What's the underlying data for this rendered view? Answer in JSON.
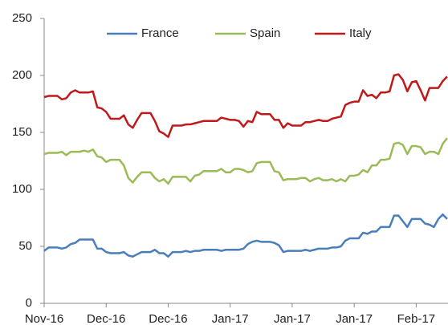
{
  "chart_data": {
    "type": "line",
    "categories": [
      "Nov-16",
      null,
      null,
      null,
      null,
      null,
      null,
      null,
      null,
      null,
      null,
      null,
      null,
      null,
      "Dec-16",
      null,
      null,
      null,
      null,
      null,
      null,
      null,
      null,
      null,
      null,
      null,
      null,
      null,
      "Dec-16",
      null,
      null,
      null,
      null,
      null,
      null,
      null,
      null,
      null,
      null,
      null,
      null,
      null,
      "Jan-17",
      null,
      null,
      null,
      null,
      null,
      null,
      null,
      null,
      null,
      null,
      null,
      null,
      null,
      "Jan-17",
      null,
      null,
      null,
      null,
      null,
      null,
      null,
      null,
      null,
      null,
      null,
      null,
      null,
      "Jan-17",
      null,
      null,
      null,
      null,
      null,
      null,
      null,
      null,
      null,
      null,
      null,
      null,
      null,
      "Feb-17",
      null,
      null,
      null,
      null,
      null,
      null,
      null
    ],
    "series": [
      {
        "name": "France",
        "color": "#4a7ebb",
        "values": [
          46,
          49,
          49,
          49,
          48,
          49,
          52,
          53,
          56,
          56,
          56,
          56,
          48,
          48,
          45,
          44,
          44,
          44,
          45,
          42,
          41,
          43,
          45,
          45,
          45,
          47,
          44,
          44,
          41,
          45,
          45,
          45,
          46,
          45,
          46,
          46,
          47,
          47,
          47,
          47,
          46,
          47,
          47,
          47,
          47,
          48,
          52,
          54,
          55,
          54,
          54,
          54,
          53,
          51,
          45,
          46,
          46,
          46,
          46,
          47,
          46,
          47,
          48,
          48,
          48,
          49,
          49,
          50,
          55,
          57,
          57,
          57,
          62,
          61,
          63,
          63,
          67,
          67,
          67,
          77,
          77,
          72,
          67,
          74,
          74,
          74,
          70,
          69,
          67,
          74,
          78,
          74
        ]
      },
      {
        "name": "Spain",
        "color": "#9bbb59",
        "values": [
          131,
          132,
          132,
          132,
          133,
          130,
          133,
          133,
          133,
          134,
          133,
          135,
          129,
          128,
          124,
          126,
          126,
          126,
          121,
          110,
          106,
          111,
          115,
          115,
          115,
          110,
          107,
          109,
          105,
          111,
          111,
          111,
          111,
          107,
          112,
          113,
          116,
          116,
          116,
          116,
          118,
          115,
          115,
          118,
          118,
          117,
          115,
          116,
          123,
          124,
          124,
          124,
          116,
          115,
          108,
          109,
          109,
          109,
          110,
          110,
          107,
          109,
          110,
          108,
          108,
          109,
          107,
          109,
          107,
          112,
          112,
          113,
          117,
          115,
          121,
          121,
          126,
          126,
          127,
          140,
          141,
          139,
          131,
          138,
          138,
          137,
          131,
          133,
          133,
          131,
          140,
          145
        ]
      },
      {
        "name": "Italy",
        "color": "#c0191b",
        "values": [
          181,
          182,
          182,
          182,
          179,
          180,
          185,
          187,
          185,
          185,
          185,
          186,
          172,
          171,
          168,
          162,
          162,
          162,
          165,
          157,
          154,
          161,
          167,
          167,
          167,
          160,
          151,
          149,
          146,
          156,
          156,
          156,
          157,
          157,
          158,
          159,
          160,
          160,
          160,
          160,
          163,
          162,
          161,
          161,
          160,
          155,
          160,
          159,
          168,
          166,
          166,
          166,
          161,
          161,
          154,
          158,
          156,
          156,
          156,
          159,
          159,
          160,
          161,
          160,
          160,
          162,
          163,
          164,
          174,
          176,
          177,
          177,
          187,
          182,
          183,
          180,
          185,
          185,
          186,
          200,
          201,
          196,
          186,
          194,
          195,
          187,
          178,
          189,
          189,
          189,
          195,
          199
        ]
      }
    ],
    "ylim": [
      0,
      250
    ],
    "yticks": [
      0,
      50,
      100,
      150,
      200,
      250
    ],
    "grid": false,
    "legend": "top"
  }
}
